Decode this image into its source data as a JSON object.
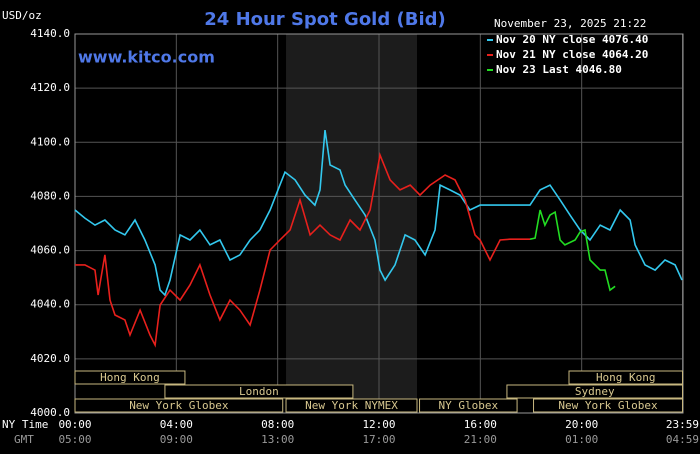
{
  "chart_data": {
    "type": "line",
    "title": "24 Hour Spot Gold (Bid)",
    "y_label": "USD/oz",
    "timestamp": "November 23, 2025 21:22",
    "website": "www.kitco.com",
    "x_row_labels": [
      "NY Time",
      "GMT"
    ],
    "xlim": [
      0,
      24
    ],
    "xticks": [
      {
        "value": 0,
        "label": "00:00"
      },
      {
        "value": 4,
        "label": "04:00"
      },
      {
        "value": 8,
        "label": "08:00"
      },
      {
        "value": 12,
        "label": "12:00"
      },
      {
        "value": 16,
        "label": "16:00"
      },
      {
        "value": 20,
        "label": "20:00"
      },
      {
        "value": 23.98,
        "label": "23:59"
      }
    ],
    "gmt_labels": [
      "05:00",
      "09:00",
      "13:00",
      "17:00",
      "21:00",
      "01:00",
      "04:59"
    ],
    "ylim": [
      4000,
      4140
    ],
    "yticks": [
      {
        "value": 4000,
        "label": "4000.0"
      },
      {
        "value": 4020,
        "label": "4020.0"
      },
      {
        "value": 4040,
        "label": "4040.0"
      },
      {
        "value": 4060,
        "label": "4060.0"
      },
      {
        "value": 4080,
        "label": "4080.0"
      },
      {
        "value": 4100,
        "label": "4100.0"
      },
      {
        "value": 4120,
        "label": "4120.0"
      },
      {
        "value": 4140,
        "label": "4140.0"
      }
    ],
    "grid": true,
    "highlight_x": [
      8.33,
      13.5
    ],
    "series": [
      {
        "name": "Nov 20 NY close 4076.40",
        "color": "#33c8ee",
        "x": [
          0,
          0.39,
          0.79,
          1.18,
          1.58,
          1.97,
          2.37,
          2.76,
          3.16,
          3.36,
          3.55,
          3.75,
          4.15,
          4.54,
          4.93,
          5.33,
          5.72,
          6.12,
          6.51,
          6.91,
          7.3,
          7.7,
          8.09,
          8.29,
          8.69,
          9.08,
          9.47,
          9.67,
          9.87,
          10.07,
          10.46,
          10.66,
          11.05,
          11.45,
          11.84,
          12.04,
          12.24,
          12.63,
          13.03,
          13.42,
          13.82,
          14.21,
          14.41,
          14.8,
          15.2,
          15.59,
          15.99,
          16.38,
          17.96,
          18.36,
          18.75,
          19.15,
          19.54,
          19.94,
          20.33,
          20.73,
          21.12,
          21.52,
          21.91,
          22.11,
          22.5,
          22.9,
          23.29,
          23.69,
          23.96
        ],
        "values": [
          4075.0,
          4072.0,
          4069.4,
          4071.3,
          4067.6,
          4065.8,
          4071.3,
          4063.9,
          4054.7,
          4045.4,
          4043.6,
          4049.1,
          4065.8,
          4063.9,
          4067.6,
          4062.1,
          4063.9,
          4056.5,
          4058.4,
          4063.9,
          4067.6,
          4075.0,
          4084.2,
          4089.0,
          4086.1,
          4080.5,
          4076.8,
          4082.4,
          4104.5,
          4091.6,
          4089.8,
          4084.2,
          4078.7,
          4073.1,
          4063.9,
          4052.8,
          4049.1,
          4054.7,
          4065.8,
          4063.9,
          4058.4,
          4067.6,
          4084.2,
          4082.4,
          4080.5,
          4075.0,
          4076.8,
          4076.8,
          4076.8,
          4082.4,
          4084.2,
          4078.7,
          4073.1,
          4067.6,
          4063.9,
          4069.4,
          4067.6,
          4075.0,
          4071.3,
          4062.1,
          4054.7,
          4052.8,
          4056.5,
          4054.7,
          4049.1
        ]
      },
      {
        "name": "Nov 21 NY close 4064.20",
        "color": "#e8201c",
        "x": [
          0,
          0.39,
          0.79,
          0.91,
          1.18,
          1.38,
          1.58,
          1.97,
          2.17,
          2.57,
          2.96,
          3.16,
          3.36,
          3.75,
          4.15,
          4.54,
          4.93,
          5.33,
          5.72,
          6.12,
          6.51,
          6.91,
          7.3,
          7.7,
          8.09,
          8.49,
          8.88,
          9.28,
          9.67,
          10.07,
          10.46,
          10.86,
          11.25,
          11.65,
          12.04,
          12.44,
          12.83,
          13.23,
          13.62,
          14.02,
          14.61,
          15.0,
          15.4,
          15.79,
          15.99,
          16.38,
          16.78,
          17.17,
          17.96
        ],
        "values": [
          4054.7,
          4054.7,
          4052.8,
          4043.6,
          4058.4,
          4041.7,
          4036.2,
          4034.4,
          4028.8,
          4038.0,
          4028.8,
          4025.1,
          4039.9,
          4045.4,
          4041.7,
          4047.3,
          4054.7,
          4043.6,
          4034.4,
          4041.7,
          4038.0,
          4032.5,
          4045.4,
          4060.2,
          4063.9,
          4067.6,
          4078.7,
          4065.8,
          4069.4,
          4065.8,
          4063.9,
          4071.3,
          4067.6,
          4075.0,
          4095.3,
          4086.1,
          4082.4,
          4084.2,
          4080.5,
          4084.2,
          4087.9,
          4086.1,
          4078.7,
          4065.8,
          4063.9,
          4056.5,
          4063.9,
          4064.2,
          4064.2
        ]
      },
      {
        "name": "Nov 23 Last 4046.80",
        "color": "#22dd22",
        "x": [
          17.96,
          18.16,
          18.36,
          18.55,
          18.75,
          18.95,
          19.15,
          19.34,
          19.74,
          19.94,
          20.13,
          20.33,
          20.73,
          20.92,
          21.12,
          21.32
        ],
        "values": [
          4064.2,
          4064.6,
          4075.0,
          4069.4,
          4073.1,
          4074.2,
          4063.9,
          4062.1,
          4063.9,
          4066.9,
          4067.6,
          4056.5,
          4052.8,
          4052.8,
          4045.4,
          4046.8
        ]
      }
    ],
    "sessions": [
      {
        "name": "Hong Kong",
        "row": 0,
        "start": 0,
        "end": 4.34
      },
      {
        "name": "Hong Kong",
        "row": 0,
        "start": 19.5,
        "end": 23.98
      },
      {
        "name": "London",
        "row": 1,
        "start": 3.55,
        "end": 10.97
      },
      {
        "name": "Sydney",
        "row": 1,
        "start": 17.05,
        "end": 23.98
      },
      {
        "name": "New York Globex",
        "row": 2,
        "start": 0,
        "end": 8.2
      },
      {
        "name": "New York NYMEX",
        "row": 2,
        "start": 8.33,
        "end": 13.5
      },
      {
        "name": "NY Globex",
        "row": 2,
        "start": 13.6,
        "end": 17.45
      },
      {
        "name": "New York Globex",
        "row": 2,
        "start": 18.1,
        "end": 23.98
      }
    ]
  }
}
